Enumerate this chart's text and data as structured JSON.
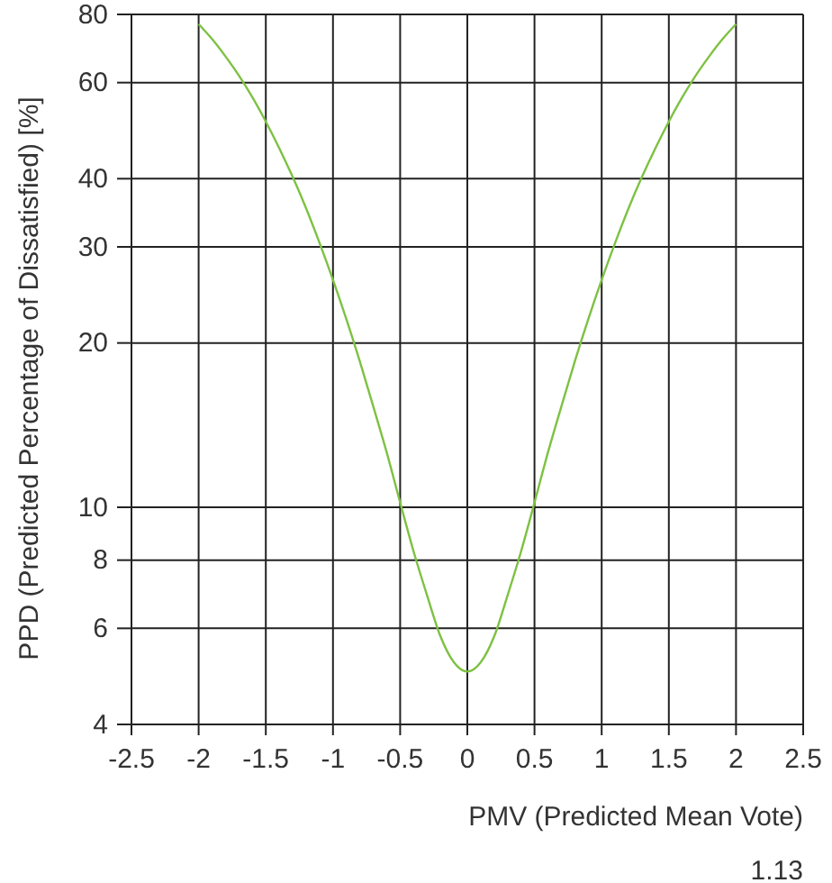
{
  "chart_data": {
    "type": "line",
    "xlabel": "PMV (Predicted Mean Vote)",
    "ylabel": "PPD (Predicted Percentage of Dissatisfied) [%]",
    "annotations": [
      "1.13"
    ],
    "x": [
      -2,
      -1.9,
      -1.8,
      -1.7,
      -1.6,
      -1.5,
      -1.4,
      -1.3,
      -1.2,
      -1.1,
      -1,
      -0.9,
      -0.8,
      -0.7,
      -0.6,
      -0.5,
      -0.4,
      -0.3,
      -0.2,
      -0.1,
      0,
      0.1,
      0.2,
      0.3,
      0.4,
      0.5,
      0.6,
      0.7,
      0.8,
      0.9,
      1,
      1.1,
      1.2,
      1.3,
      1.4,
      1.5,
      1.6,
      1.7,
      1.8,
      1.9,
      2
    ],
    "series": [
      {
        "color": "#7dc142",
        "values": [
          76.8,
          72.1,
          67,
          61.8,
          56.4,
          50.9,
          45.5,
          40.3,
          35.3,
          30.5,
          26.1,
          22.1,
          18.5,
          15.3,
          12.6,
          10.2,
          8.3,
          6.9,
          5.8,
          5.2,
          5,
          5.2,
          5.8,
          6.9,
          8.3,
          10.2,
          12.6,
          15.3,
          18.5,
          22.1,
          26.1,
          30.5,
          35.3,
          40.3,
          45.5,
          50.9,
          56.4,
          61.8,
          67,
          72.1,
          76.8
        ]
      }
    ],
    "xlim": [
      -2.5,
      2.5
    ],
    "xticks": [
      -2.5,
      -2,
      -1.5,
      -1,
      -0.5,
      0,
      0.5,
      1,
      1.5,
      2,
      2.5
    ],
    "ylim": [
      4,
      80
    ],
    "yticks": [
      4,
      6,
      8,
      10,
      20,
      30,
      40,
      60,
      80
    ],
    "log": "y",
    "grid": true,
    "marker": "none",
    "line_style": "solid"
  }
}
